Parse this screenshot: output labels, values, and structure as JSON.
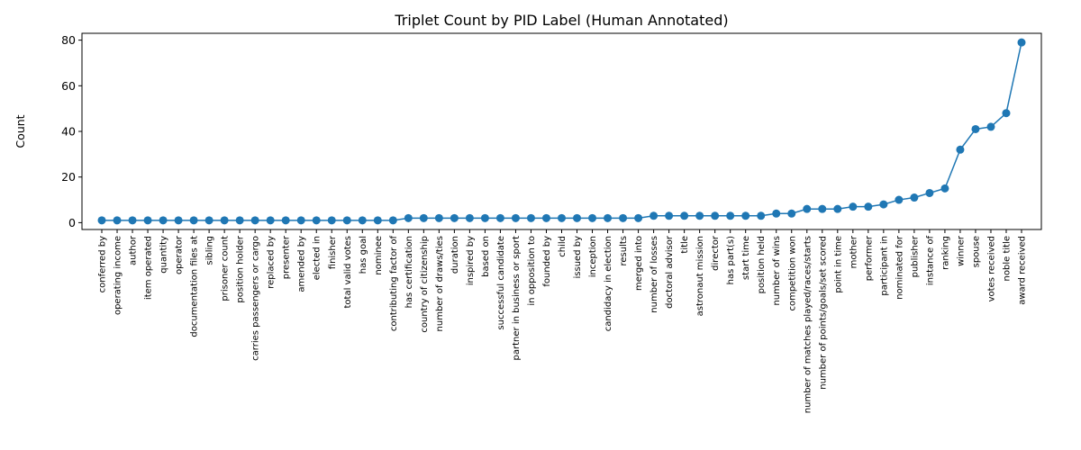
{
  "chart_data": {
    "type": "line",
    "title": "Triplet Count by PID Label (Human Annotated)",
    "xlabel": "",
    "ylabel": "Count",
    "ylim": [
      -3,
      83
    ],
    "yticks": [
      0,
      20,
      40,
      60,
      80
    ],
    "grid": false,
    "color": "#1f77b4",
    "categories": [
      "conferred by",
      "operating income",
      "author",
      "item operated",
      "quantity",
      "operator",
      "documentation files at",
      "sibling",
      "prisoner count",
      "position holder",
      "carries passengers or cargo",
      "replaced by",
      "presenter",
      "amended by",
      "elected in",
      "finisher",
      "total valid votes",
      "has goal",
      "nominee",
      "contributing factor of",
      "has certification",
      "country of citizenship",
      "number of draws/ties",
      "duration",
      "inspired by",
      "based on",
      "successful candidate",
      "partner in business or sport",
      "in opposition to",
      "founded by",
      "child",
      "issued by",
      "inception",
      "candidacy in election",
      "results",
      "merged into",
      "number of losses",
      "doctoral advisor",
      "title",
      "astronaut mission",
      "director",
      "has part(s)",
      "start time",
      "position held",
      "number of wins",
      "competition won",
      "number of matches played/races/starts",
      "number of points/goals/set scored",
      "point in time",
      "mother",
      "performer",
      "participant in",
      "nominated for",
      "publisher",
      "instance of",
      "ranking",
      "winner",
      "spouse",
      "votes received",
      "noble title",
      "award received"
    ],
    "values": [
      1,
      1,
      1,
      1,
      1,
      1,
      1,
      1,
      1,
      1,
      1,
      1,
      1,
      1,
      1,
      1,
      1,
      1,
      1,
      1,
      2,
      2,
      2,
      2,
      2,
      2,
      2,
      2,
      2,
      2,
      2,
      2,
      2,
      2,
      2,
      2,
      3,
      3,
      3,
      3,
      3,
      3,
      3,
      3,
      4,
      4,
      6,
      6,
      6,
      7,
      7,
      8,
      10,
      11,
      13,
      15,
      32,
      41,
      42,
      48,
      79
    ]
  }
}
